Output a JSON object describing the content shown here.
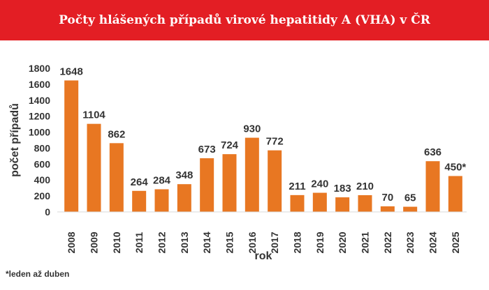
{
  "header": {
    "title": "Počty hlášených případů virové hepatitidy A (VHA) v ČR"
  },
  "footnote": "*leden až duben",
  "colors": {
    "header_bg": "#e31e24",
    "bar": "#e87722",
    "text": "#333333",
    "grid": "#d9d9d9"
  },
  "chart_data": {
    "type": "bar",
    "title": "Počty hlášených případů virové hepatitidy A (VHA) v ČR",
    "xlabel": "rok",
    "ylabel": "počet případů",
    "categories": [
      "2008",
      "2009",
      "2010",
      "2011",
      "2012",
      "2013",
      "2014",
      "2015",
      "2016",
      "2017",
      "2018",
      "2019",
      "2020",
      "2021",
      "2022",
      "2023",
      "2024",
      "2025"
    ],
    "values": [
      1648,
      1104,
      862,
      264,
      284,
      348,
      673,
      724,
      930,
      772,
      211,
      240,
      183,
      210,
      70,
      65,
      636,
      450
    ],
    "data_labels": [
      "1648",
      "1104",
      "862",
      "264",
      "284",
      "348",
      "673",
      "724",
      "930",
      "772",
      "211",
      "240",
      "183",
      "210",
      "70",
      "65",
      "636",
      "450*"
    ],
    "ylim": [
      0,
      1800
    ],
    "yticks": [
      0,
      200,
      400,
      600,
      800,
      1000,
      1200,
      1400,
      1600,
      1800
    ],
    "grid": false,
    "legend": "none"
  }
}
